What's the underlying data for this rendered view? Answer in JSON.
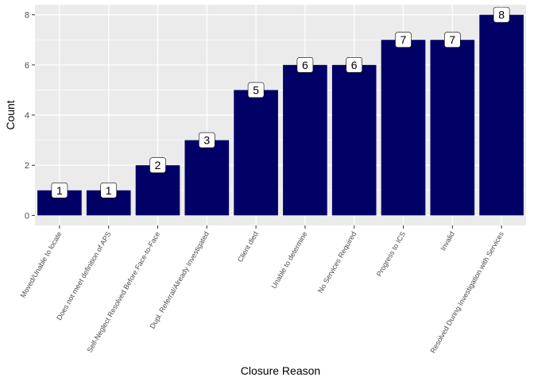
{
  "chart_data": {
    "type": "bar",
    "xlabel": "Closure Reason",
    "ylabel": "Count",
    "categories": [
      "Moved/Unable to locate",
      "Does not meet definition of APS",
      "Self-Neglect Resolved Before Face-to-Face",
      "Dupl. Referral/Already Investigated",
      "Client died",
      "Unable to determine",
      "No Services Required",
      "Progress to ICS",
      "Invalid",
      "Resolved During Investigation with Services"
    ],
    "values": [
      1,
      1,
      2,
      3,
      5,
      6,
      6,
      7,
      7,
      8
    ],
    "yticks": [
      0,
      2,
      4,
      6,
      8
    ],
    "ylim": [
      -0.4,
      8.4
    ],
    "grid": true,
    "legend": "none",
    "colors": {
      "bar": "#000066",
      "panel": "#EBEBEB",
      "grid": "#FFFFFF",
      "label_box": "#FFFFFF"
    }
  }
}
